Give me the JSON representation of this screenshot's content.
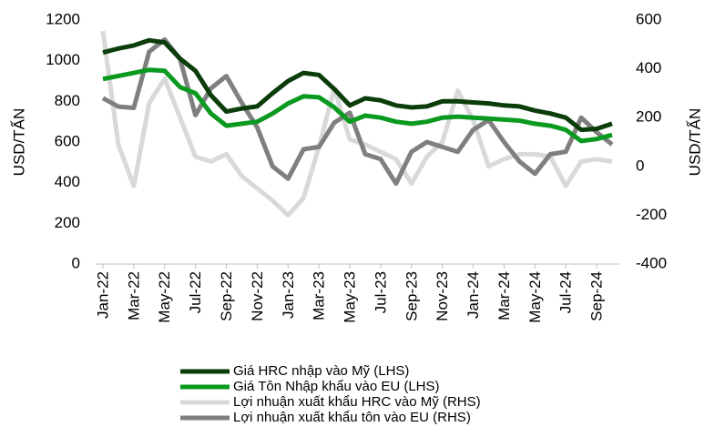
{
  "chart_data": {
    "type": "line",
    "categories": [
      "Jan-22",
      null,
      "Mar-22",
      null,
      "May-22",
      null,
      "Jul-22",
      null,
      "Sep-22",
      null,
      "Nov-22",
      null,
      "Jan-23",
      null,
      "Mar-23",
      null,
      "May-23",
      null,
      "Jul-23",
      null,
      "Sep-23",
      null,
      "Nov-23",
      null,
      "Jan-24",
      null,
      "Mar-24",
      null,
      "May-24",
      null,
      "Jul-24",
      null,
      "Sep-24",
      null
    ],
    "ylabel": "USD/TẤN",
    "y2label": "USD/TẤN",
    "ylim": [
      0,
      1200
    ],
    "yticks": [
      0,
      200,
      400,
      600,
      800,
      1000,
      1200
    ],
    "y2lim": [
      -400,
      600
    ],
    "y2ticks": [
      -400,
      -200,
      0,
      200,
      400,
      600
    ],
    "series": [
      {
        "name": "Giá HRC nhập vào Mỹ (LHS)",
        "color": "#0b3d0b",
        "values": [
          1040,
          1060,
          1075,
          1100,
          1090,
          1010,
          950,
          830,
          750,
          765,
          775,
          840,
          900,
          940,
          930,
          860,
          780,
          815,
          805,
          780,
          770,
          775,
          800,
          800,
          795,
          790,
          780,
          775,
          755,
          740,
          720,
          660,
          665,
          690
        ]
      },
      {
        "name": "Giá Tôn Nhập khẩu vào EU (LHS)",
        "color": "#0a9a1f",
        "values": [
          910,
          925,
          940,
          955,
          950,
          870,
          840,
          740,
          680,
          690,
          700,
          740,
          790,
          825,
          820,
          770,
          700,
          730,
          720,
          700,
          690,
          700,
          720,
          725,
          720,
          715,
          710,
          705,
          690,
          680,
          660,
          605,
          615,
          635
        ]
      },
      {
        "name": "Lợi nhuận xuất khẩu HRC vào Mỹ (RHS)",
        "color": "#d9d9d9",
        "axis": "y2",
        "values": [
          555,
          90,
          -80,
          260,
          360,
          200,
          40,
          20,
          50,
          -40,
          -90,
          -140,
          -200,
          -130,
          80,
          320,
          110,
          90,
          60,
          30,
          -70,
          40,
          100,
          310,
          190,
          0,
          30,
          50,
          50,
          40,
          -80,
          20,
          30,
          20
        ]
      },
      {
        "name": "Lợi nhuận xuất khẩu tôn vào EU (RHS)",
        "color": "#7f7f7f",
        "axis": "y2",
        "values": [
          280,
          245,
          240,
          470,
          520,
          440,
          210,
          320,
          370,
          260,
          160,
          0,
          -50,
          70,
          80,
          180,
          220,
          50,
          30,
          -70,
          60,
          100,
          80,
          60,
          150,
          190,
          100,
          20,
          -30,
          50,
          60,
          200,
          140,
          90
        ]
      }
    ]
  }
}
